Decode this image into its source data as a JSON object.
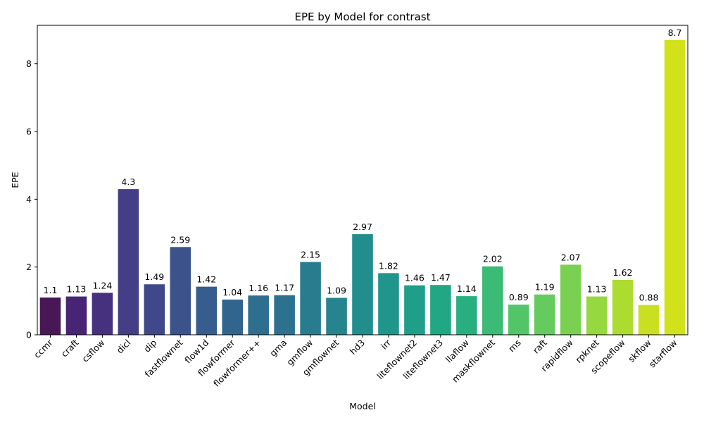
{
  "chart_data": {
    "type": "bar",
    "title": "EPE by Model for contrast",
    "xlabel": "Model",
    "ylabel": "EPE",
    "ylim": [
      0,
      9.135
    ],
    "yticks": [
      0,
      2,
      4,
      6,
      8
    ],
    "grid": false,
    "legend": "none",
    "palette": "viridis",
    "categories": [
      "ccmr",
      "craft",
      "csflow",
      "dicl",
      "dip",
      "fastflownet",
      "flow1d",
      "flowformer",
      "flowformer++",
      "gma",
      "gmflow",
      "gmflownet",
      "hd3",
      "irr",
      "liteflownet2",
      "liteflownet3",
      "llaflow",
      "maskflownet",
      "ms",
      "raft",
      "rapidflow",
      "rpknet",
      "scopeflow",
      "skflow",
      "starflow"
    ],
    "values": [
      1.1,
      1.13,
      1.24,
      4.3,
      1.49,
      2.59,
      1.42,
      1.04,
      1.16,
      1.17,
      2.15,
      1.09,
      2.97,
      1.82,
      1.46,
      1.47,
      1.14,
      2.02,
      0.89,
      1.19,
      2.07,
      1.13,
      1.62,
      0.88,
      8.7
    ],
    "value_labels": [
      "1.1",
      "1.13",
      "1.24",
      "4.3",
      "1.49",
      "2.59",
      "1.42",
      "1.04",
      "1.16",
      "1.17",
      "2.15",
      "1.09",
      "2.97",
      "1.82",
      "1.46",
      "1.47",
      "1.14",
      "2.02",
      "0.89",
      "1.19",
      "2.07",
      "1.13",
      "1.62",
      "0.88",
      "8.7"
    ],
    "colors": [
      "#481756",
      "#482475",
      "#46317e",
      "#433e85",
      "#3f4889",
      "#3b528b",
      "#365d8d",
      "#32658e",
      "#2e6e8e",
      "#2c728e",
      "#287c8e",
      "#25848e",
      "#228d8d",
      "#1f958b",
      "#1f9e89",
      "#22a785",
      "#29af7f",
      "#3bbb75",
      "#52c569",
      "#65cb5e",
      "#7ad151",
      "#95d840",
      "#addc30",
      "#c8e020",
      "#d1e21b"
    ]
  }
}
